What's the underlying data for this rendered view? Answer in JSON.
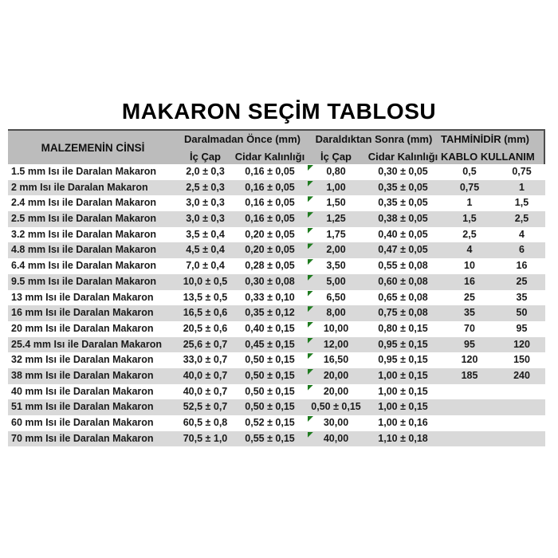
{
  "title": "MAKARON SEÇİM TABLOSU",
  "colors": {
    "header_bg": "#bcbcbc",
    "header_border": "#4d4d4d",
    "stripe_bg": "#d9d9d9",
    "row_bg": "#ffffff",
    "text": "#1a1a1a",
    "indicator_green": "#1e7b1e"
  },
  "icons": {
    "error_indicator": "green-corner-triangle"
  },
  "chart_data": {
    "type": "table",
    "title": "MAKARON SEÇİM TABLOSU",
    "header": {
      "material": "MALZEMENİN CİNSİ",
      "group_before": "Daralmadan Önce (mm)",
      "group_after": "Daraldıktan Sonra (mm)",
      "group_estimate": "TAHMİNİDİR (mm)",
      "ic_cap_before": "İç Çap",
      "cidar_before": "Cidar Kalınlığı",
      "ic_cap_after": "İç Çap",
      "cidar_after": "Cidar Kalınlığı",
      "kablo": "KABLO KULLANIM"
    },
    "rows": [
      {
        "material": "1.5 mm Isı ile Daralan Makaron",
        "ic_cap_once": "2,0 ± 0,3",
        "cidar_once": "0,16 ± 0,05",
        "ic_cap_sonra": "0,80",
        "cidar_sonra": "0,30 ± 0,05",
        "kablo": "0,5",
        "kullanim": "0,75",
        "error_indicator": true
      },
      {
        "material": "2 mm Isı ile Daralan Makaron",
        "ic_cap_once": "2,5 ± 0,3",
        "cidar_once": "0,16 ± 0,05",
        "ic_cap_sonra": "1,00",
        "cidar_sonra": "0,35 ± 0,05",
        "kablo": "0,75",
        "kullanim": "1",
        "error_indicator": true
      },
      {
        "material": "2.4 mm Isı ile Daralan Makaron",
        "ic_cap_once": "3,0 ± 0,3",
        "cidar_once": "0,16 ± 0,05",
        "ic_cap_sonra": "1,50",
        "cidar_sonra": "0,35 ± 0,05",
        "kablo": "1",
        "kullanim": "1,5",
        "error_indicator": true
      },
      {
        "material": "2.5 mm Isı ile Daralan Makaron",
        "ic_cap_once": "3,0 ± 0,3",
        "cidar_once": "0,16 ± 0,05",
        "ic_cap_sonra": "1,25",
        "cidar_sonra": "0,38 ± 0,05",
        "kablo": "1,5",
        "kullanim": "2,5",
        "error_indicator": true
      },
      {
        "material": "3.2 mm Isı ile Daralan Makaron",
        "ic_cap_once": "3,5 ± 0,4",
        "cidar_once": "0,20 ± 0,05",
        "ic_cap_sonra": "1,75",
        "cidar_sonra": "0,40 ± 0,05",
        "kablo": "2,5",
        "kullanim": "4",
        "error_indicator": true
      },
      {
        "material": "4.8 mm Isı ile Daralan Makaron",
        "ic_cap_once": "4,5 ± 0,4",
        "cidar_once": "0,20 ± 0,05",
        "ic_cap_sonra": "2,00",
        "cidar_sonra": "0,47 ± 0,05",
        "kablo": "4",
        "kullanim": "6",
        "error_indicator": true
      },
      {
        "material": "6.4 mm Isı ile Daralan Makaron",
        "ic_cap_once": "7,0 ± 0,4",
        "cidar_once": "0,28 ± 0,05",
        "ic_cap_sonra": "3,50",
        "cidar_sonra": "0,55 ± 0,08",
        "kablo": "10",
        "kullanim": "16",
        "error_indicator": true
      },
      {
        "material": "9.5 mm Isı ile Daralan Makaron",
        "ic_cap_once": "10,0 ± 0,5",
        "cidar_once": "0,30 ± 0,08",
        "ic_cap_sonra": "5,00",
        "cidar_sonra": "0,60 ± 0,08",
        "kablo": "16",
        "kullanim": "25",
        "error_indicator": true
      },
      {
        "material": "13 mm Isı ile Daralan Makaron",
        "ic_cap_once": "13,5 ± 0,5",
        "cidar_once": "0,33 ± 0,10",
        "ic_cap_sonra": "6,50",
        "cidar_sonra": "0,65 ± 0,08",
        "kablo": "25",
        "kullanim": "35",
        "error_indicator": true
      },
      {
        "material": "16 mm Isı ile Daralan Makaron",
        "ic_cap_once": "16,5 ± 0,6",
        "cidar_once": "0,35 ± 0,12",
        "ic_cap_sonra": "8,00",
        "cidar_sonra": "0,75 ± 0,08",
        "kablo": "35",
        "kullanim": "50",
        "error_indicator": true
      },
      {
        "material": "20 mm Isı ile Daralan Makaron",
        "ic_cap_once": "20,5 ± 0,6",
        "cidar_once": "0,40 ± 0,15",
        "ic_cap_sonra": "10,00",
        "cidar_sonra": "0,80 ± 0,15",
        "kablo": "70",
        "kullanim": "95",
        "error_indicator": true
      },
      {
        "material": "25.4 mm Isı ile Daralan Makaron",
        "ic_cap_once": "25,6 ± 0,7",
        "cidar_once": "0,45 ± 0,15",
        "ic_cap_sonra": "12,00",
        "cidar_sonra": "0,95 ± 0,15",
        "kablo": "95",
        "kullanim": "120",
        "error_indicator": true
      },
      {
        "material": "32 mm Isı ile Daralan Makaron",
        "ic_cap_once": "33,0 ± 0,7",
        "cidar_once": "0,50 ± 0,15",
        "ic_cap_sonra": "16,50",
        "cidar_sonra": "0,95 ± 0,15",
        "kablo": "120",
        "kullanim": "150",
        "error_indicator": true
      },
      {
        "material": "38 mm Isı ile Daralan Makaron",
        "ic_cap_once": "40,0 ± 0,7",
        "cidar_once": "0,50 ± 0,15",
        "ic_cap_sonra": "20,00",
        "cidar_sonra": "1,00 ± 0,15",
        "kablo": "185",
        "kullanim": "240",
        "error_indicator": true
      },
      {
        "material": "40 mm Isı ile Daralan Makaron",
        "ic_cap_once": "40,0 ± 0,7",
        "cidar_once": "0,50 ± 0,15",
        "ic_cap_sonra": "20,00",
        "cidar_sonra": "1,00 ± 0,15",
        "kablo": "",
        "kullanim": "",
        "error_indicator": true
      },
      {
        "material": "51 mm Isı ile Daralan Makaron",
        "ic_cap_once": "52,5 ± 0,7",
        "cidar_once": "0,50 ± 0,15",
        "ic_cap_sonra": "0,50 ± 0,15",
        "cidar_sonra": "1,00 ± 0,15",
        "kablo": "",
        "kullanim": "",
        "error_indicator": false
      },
      {
        "material": "60 mm Isı ile Daralan Makaron",
        "ic_cap_once": "60,5 ± 0,8",
        "cidar_once": "0,52 ± 0,15",
        "ic_cap_sonra": "30,00",
        "cidar_sonra": "1,00 ± 0,16",
        "kablo": "",
        "kullanim": "",
        "error_indicator": true
      },
      {
        "material": "70 mm Isı ile Daralan Makaron",
        "ic_cap_once": "70,5 ± 1,0",
        "cidar_once": "0,55 ± 0,15",
        "ic_cap_sonra": "40,00",
        "cidar_sonra": "1,10 ± 0,18",
        "kablo": "",
        "kullanim": "",
        "error_indicator": true
      }
    ]
  }
}
